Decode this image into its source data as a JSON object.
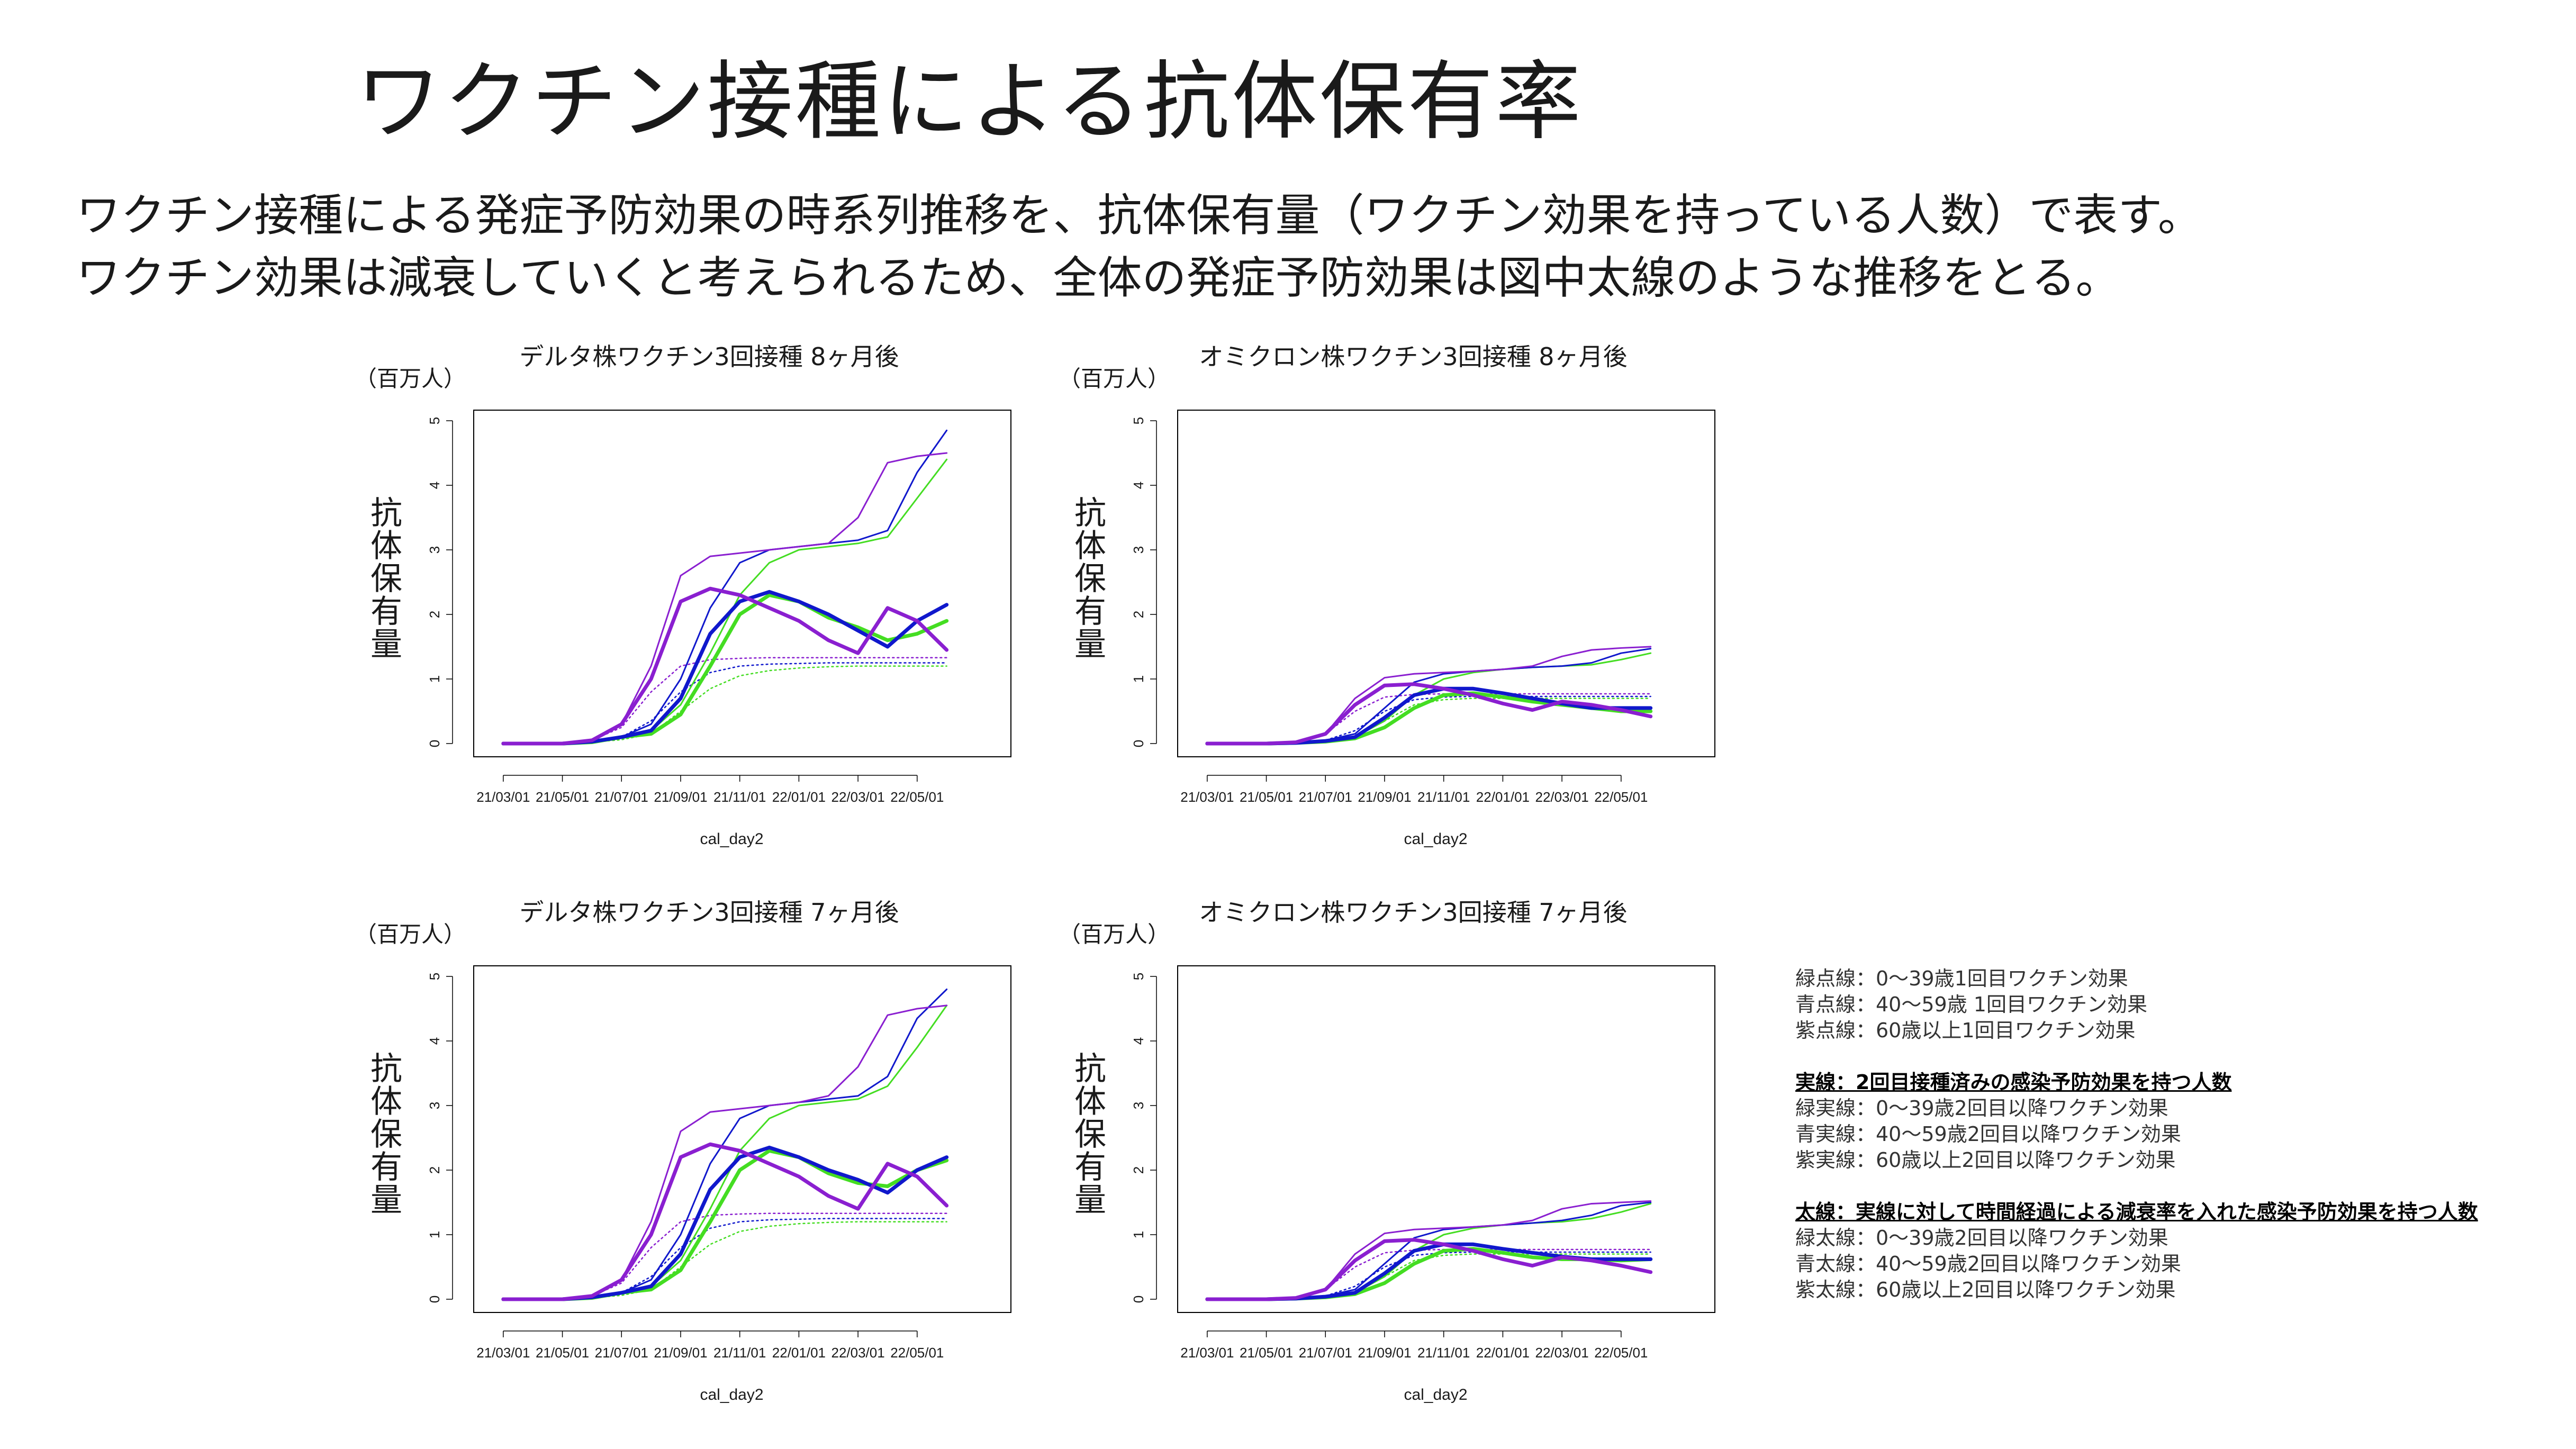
{
  "page": {
    "title": "ワクチン接種による抗体保有率",
    "subtitle_lines": [
      "ワクチン接種による発症予防効果の時系列推移を、抗体保有量（ワクチン効果を持っている人数）で表す。",
      "ワクチン効果は減衰していくと考えられるため、全体の発症予防効果は図中太線のような推移をとる。"
    ]
  },
  "colors": {
    "green": "#44dd22",
    "blue": "#1018cc",
    "purple": "#8a1fd0"
  },
  "legend": {
    "dotted_items": [
      "緑点線：0〜39歳1回目ワクチン効果",
      "青点線：40〜59歳 1回目ワクチン効果",
      "紫点線：60歳以上1回目ワクチン効果"
    ],
    "solid_header": "実線：2回目接種済みの感染予防効果を持つ人数",
    "solid_items": [
      "緑実線：0〜39歳2回目以降ワクチン効果",
      "青実線：40〜59歳2回目以降ワクチン効果",
      "紫実線：60歳以上2回目以降ワクチン効果"
    ],
    "thick_header": "太線：実線に対して時間経過による減衰率を入れた感染予防効果を持つ人数",
    "thick_items": [
      "緑太線：0〜39歳2回目以降ワクチン効果",
      "青太線：40〜59歳2回目以降ワクチン効果",
      "紫太線：60歳以上2回目以降ワクチン効果"
    ]
  },
  "chart_data": [
    {
      "type": "line",
      "title": "デルタ株ワクチン3回接種 8ヶ月後",
      "unit_label": "（百万人）",
      "ylabel": "抗体保有量",
      "xlabel": "cal_day2",
      "x_ticks": [
        "21/03/01",
        "21/05/01",
        "21/07/01",
        "21/09/01",
        "21/11/01",
        "22/01/01",
        "22/03/01",
        "22/05/01"
      ],
      "ylim": [
        0,
        5
      ],
      "y_ticks": [
        0,
        1,
        2,
        3,
        4,
        5
      ],
      "x_points": [
        0,
        1,
        2,
        3,
        4,
        5,
        6,
        7,
        8,
        9,
        10,
        11,
        12,
        13,
        14,
        15
      ],
      "series": [
        {
          "color": "green",
          "style": "dotted",
          "values": [
            0,
            0,
            0,
            0.02,
            0.06,
            0.15,
            0.5,
            0.85,
            1.05,
            1.13,
            1.17,
            1.19,
            1.2,
            1.2,
            1.2,
            1.2
          ]
        },
        {
          "color": "blue",
          "style": "dotted",
          "values": [
            0,
            0,
            0,
            0.03,
            0.1,
            0.35,
            0.8,
            1.1,
            1.2,
            1.23,
            1.24,
            1.25,
            1.25,
            1.25,
            1.25,
            1.25
          ]
        },
        {
          "color": "purple",
          "style": "dotted",
          "values": [
            0,
            0,
            0,
            0.05,
            0.25,
            0.8,
            1.2,
            1.3,
            1.32,
            1.33,
            1.33,
            1.33,
            1.33,
            1.33,
            1.33,
            1.33
          ]
        },
        {
          "color": "green",
          "style": "thin",
          "values": [
            0,
            0,
            0,
            0.02,
            0.1,
            0.2,
            0.6,
            1.4,
            2.3,
            2.8,
            3.0,
            3.05,
            3.1,
            3.2,
            3.8,
            4.4
          ]
        },
        {
          "color": "blue",
          "style": "thin",
          "values": [
            0,
            0,
            0,
            0.03,
            0.1,
            0.3,
            1.0,
            2.1,
            2.8,
            3.0,
            3.05,
            3.1,
            3.15,
            3.3,
            4.2,
            4.85
          ]
        },
        {
          "color": "purple",
          "style": "thin",
          "values": [
            0,
            0,
            0,
            0.05,
            0.3,
            1.2,
            2.6,
            2.9,
            2.95,
            3.0,
            3.05,
            3.1,
            3.5,
            4.35,
            4.45,
            4.5
          ]
        },
        {
          "color": "green",
          "style": "thick",
          "values": [
            0,
            0,
            0,
            0.02,
            0.1,
            0.15,
            0.45,
            1.2,
            2.0,
            2.3,
            2.2,
            1.95,
            1.8,
            1.6,
            1.7,
            1.9
          ]
        },
        {
          "color": "blue",
          "style": "thick",
          "values": [
            0,
            0,
            0,
            0.03,
            0.1,
            0.2,
            0.7,
            1.7,
            2.2,
            2.35,
            2.2,
            2.0,
            1.75,
            1.5,
            1.9,
            2.15
          ]
        },
        {
          "color": "purple",
          "style": "thick",
          "values": [
            0,
            0,
            0,
            0.05,
            0.3,
            1.0,
            2.2,
            2.4,
            2.3,
            2.1,
            1.9,
            1.6,
            1.4,
            2.1,
            1.9,
            1.45
          ]
        }
      ]
    },
    {
      "type": "line",
      "title": "オミクロン株ワクチン3回接種 8ヶ月後",
      "unit_label": "（百万人）",
      "ylabel": "抗体保有量",
      "xlabel": "cal_day2",
      "x_ticks": [
        "21/03/01",
        "21/05/01",
        "21/07/01",
        "21/09/01",
        "21/11/01",
        "22/01/01",
        "22/03/01",
        "22/05/01"
      ],
      "ylim": [
        0,
        5
      ],
      "y_ticks": [
        0,
        1,
        2,
        3,
        4,
        5
      ],
      "x_points": [
        0,
        1,
        2,
        3,
        4,
        5,
        6,
        7,
        8,
        9,
        10,
        11,
        12,
        13,
        14,
        15
      ],
      "series": [
        {
          "color": "green",
          "style": "dotted",
          "values": [
            0,
            0,
            0,
            0.01,
            0.03,
            0.1,
            0.35,
            0.6,
            0.68,
            0.7,
            0.7,
            0.7,
            0.7,
            0.7,
            0.7,
            0.7
          ]
        },
        {
          "color": "blue",
          "style": "dotted",
          "values": [
            0,
            0,
            0,
            0.01,
            0.05,
            0.2,
            0.5,
            0.68,
            0.72,
            0.73,
            0.73,
            0.73,
            0.73,
            0.73,
            0.73,
            0.73
          ]
        },
        {
          "color": "purple",
          "style": "dotted",
          "values": [
            0,
            0,
            0,
            0.02,
            0.15,
            0.5,
            0.72,
            0.76,
            0.77,
            0.77,
            0.77,
            0.77,
            0.77,
            0.77,
            0.77,
            0.77
          ]
        },
        {
          "color": "green",
          "style": "thin",
          "values": [
            0,
            0,
            0,
            0.01,
            0.04,
            0.1,
            0.35,
            0.75,
            1.0,
            1.1,
            1.15,
            1.18,
            1.2,
            1.22,
            1.3,
            1.4
          ]
        },
        {
          "color": "blue",
          "style": "thin",
          "values": [
            0,
            0,
            0,
            0.01,
            0.05,
            0.15,
            0.55,
            0.95,
            1.08,
            1.12,
            1.15,
            1.18,
            1.2,
            1.25,
            1.4,
            1.47
          ]
        },
        {
          "color": "purple",
          "style": "thin",
          "values": [
            0,
            0,
            0,
            0.02,
            0.15,
            0.7,
            1.02,
            1.08,
            1.1,
            1.12,
            1.15,
            1.2,
            1.35,
            1.45,
            1.48,
            1.5
          ]
        },
        {
          "color": "green",
          "style": "thick",
          "values": [
            0,
            0,
            0,
            0.01,
            0.03,
            0.08,
            0.25,
            0.55,
            0.75,
            0.78,
            0.72,
            0.65,
            0.6,
            0.55,
            0.5,
            0.5
          ]
        },
        {
          "color": "blue",
          "style": "thick",
          "values": [
            0,
            0,
            0,
            0.01,
            0.04,
            0.1,
            0.4,
            0.75,
            0.85,
            0.85,
            0.78,
            0.7,
            0.62,
            0.55,
            0.55,
            0.55
          ]
        },
        {
          "color": "purple",
          "style": "thick",
          "values": [
            0,
            0,
            0,
            0.02,
            0.15,
            0.6,
            0.9,
            0.92,
            0.85,
            0.75,
            0.62,
            0.52,
            0.65,
            0.6,
            0.52,
            0.42
          ]
        }
      ]
    },
    {
      "type": "line",
      "title": "デルタ株ワクチン3回接種 7ヶ月後",
      "unit_label": "（百万人）",
      "ylabel": "抗体保有量",
      "xlabel": "cal_day2",
      "x_ticks": [
        "21/03/01",
        "21/05/01",
        "21/07/01",
        "21/09/01",
        "21/11/01",
        "22/01/01",
        "22/03/01",
        "22/05/01"
      ],
      "ylim": [
        0,
        5
      ],
      "y_ticks": [
        0,
        1,
        2,
        3,
        4,
        5
      ],
      "x_points": [
        0,
        1,
        2,
        3,
        4,
        5,
        6,
        7,
        8,
        9,
        10,
        11,
        12,
        13,
        14,
        15
      ],
      "series": [
        {
          "color": "green",
          "style": "dotted",
          "values": [
            0,
            0,
            0,
            0.02,
            0.06,
            0.15,
            0.5,
            0.85,
            1.05,
            1.13,
            1.17,
            1.19,
            1.2,
            1.2,
            1.2,
            1.2
          ]
        },
        {
          "color": "blue",
          "style": "dotted",
          "values": [
            0,
            0,
            0,
            0.03,
            0.1,
            0.35,
            0.8,
            1.1,
            1.2,
            1.23,
            1.24,
            1.25,
            1.25,
            1.25,
            1.25,
            1.25
          ]
        },
        {
          "color": "purple",
          "style": "dotted",
          "values": [
            0,
            0,
            0,
            0.05,
            0.25,
            0.8,
            1.2,
            1.3,
            1.32,
            1.33,
            1.33,
            1.33,
            1.33,
            1.33,
            1.33,
            1.33
          ]
        },
        {
          "color": "green",
          "style": "thin",
          "values": [
            0,
            0,
            0,
            0.02,
            0.1,
            0.2,
            0.6,
            1.4,
            2.3,
            2.8,
            3.0,
            3.05,
            3.1,
            3.3,
            3.9,
            4.55
          ]
        },
        {
          "color": "blue",
          "style": "thin",
          "values": [
            0,
            0,
            0,
            0.03,
            0.1,
            0.3,
            1.0,
            2.1,
            2.8,
            3.0,
            3.05,
            3.1,
            3.15,
            3.45,
            4.35,
            4.8
          ]
        },
        {
          "color": "purple",
          "style": "thin",
          "values": [
            0,
            0,
            0,
            0.05,
            0.3,
            1.2,
            2.6,
            2.9,
            2.95,
            3.0,
            3.05,
            3.15,
            3.6,
            4.4,
            4.5,
            4.55
          ]
        },
        {
          "color": "green",
          "style": "thick",
          "values": [
            0,
            0,
            0,
            0.02,
            0.1,
            0.15,
            0.45,
            1.2,
            2.0,
            2.3,
            2.2,
            1.95,
            1.8,
            1.75,
            2.0,
            2.15
          ]
        },
        {
          "color": "blue",
          "style": "thick",
          "values": [
            0,
            0,
            0,
            0.03,
            0.1,
            0.2,
            0.7,
            1.7,
            2.2,
            2.35,
            2.2,
            2.0,
            1.85,
            1.65,
            2.0,
            2.2
          ]
        },
        {
          "color": "purple",
          "style": "thick",
          "values": [
            0,
            0,
            0,
            0.05,
            0.3,
            1.0,
            2.2,
            2.4,
            2.3,
            2.1,
            1.9,
            1.6,
            1.4,
            2.1,
            1.9,
            1.45
          ]
        }
      ]
    },
    {
      "type": "line",
      "title": "オミクロン株ワクチン3回接種 7ヶ月後",
      "unit_label": "（百万人）",
      "ylabel": "抗体保有量",
      "xlabel": "cal_day2",
      "x_ticks": [
        "21/03/01",
        "21/05/01",
        "21/07/01",
        "21/09/01",
        "21/11/01",
        "22/01/01",
        "22/03/01",
        "22/05/01"
      ],
      "ylim": [
        0,
        5
      ],
      "y_ticks": [
        0,
        1,
        2,
        3,
        4,
        5
      ],
      "x_points": [
        0,
        1,
        2,
        3,
        4,
        5,
        6,
        7,
        8,
        9,
        10,
        11,
        12,
        13,
        14,
        15
      ],
      "series": [
        {
          "color": "green",
          "style": "dotted",
          "values": [
            0,
            0,
            0,
            0.01,
            0.03,
            0.1,
            0.35,
            0.6,
            0.68,
            0.7,
            0.7,
            0.7,
            0.7,
            0.7,
            0.7,
            0.7
          ]
        },
        {
          "color": "blue",
          "style": "dotted",
          "values": [
            0,
            0,
            0,
            0.01,
            0.05,
            0.2,
            0.5,
            0.68,
            0.72,
            0.73,
            0.73,
            0.73,
            0.73,
            0.73,
            0.73,
            0.73
          ]
        },
        {
          "color": "purple",
          "style": "dotted",
          "values": [
            0,
            0,
            0,
            0.02,
            0.15,
            0.5,
            0.72,
            0.76,
            0.77,
            0.77,
            0.77,
            0.77,
            0.77,
            0.77,
            0.77,
            0.77
          ]
        },
        {
          "color": "green",
          "style": "thin",
          "values": [
            0,
            0,
            0,
            0.01,
            0.04,
            0.1,
            0.35,
            0.75,
            1.0,
            1.1,
            1.15,
            1.18,
            1.2,
            1.25,
            1.35,
            1.48
          ]
        },
        {
          "color": "blue",
          "style": "thin",
          "values": [
            0,
            0,
            0,
            0.01,
            0.05,
            0.15,
            0.55,
            0.95,
            1.08,
            1.12,
            1.15,
            1.18,
            1.22,
            1.3,
            1.45,
            1.5
          ]
        },
        {
          "color": "purple",
          "style": "thin",
          "values": [
            0,
            0,
            0,
            0.02,
            0.15,
            0.7,
            1.02,
            1.08,
            1.1,
            1.12,
            1.15,
            1.22,
            1.4,
            1.48,
            1.5,
            1.52
          ]
        },
        {
          "color": "green",
          "style": "thick",
          "values": [
            0,
            0,
            0,
            0.01,
            0.03,
            0.08,
            0.25,
            0.55,
            0.75,
            0.78,
            0.72,
            0.65,
            0.62,
            0.62,
            0.6,
            0.62
          ]
        },
        {
          "color": "blue",
          "style": "thick",
          "values": [
            0,
            0,
            0,
            0.01,
            0.04,
            0.1,
            0.4,
            0.75,
            0.85,
            0.85,
            0.78,
            0.72,
            0.66,
            0.62,
            0.62,
            0.62
          ]
        },
        {
          "color": "purple",
          "style": "thick",
          "values": [
            0,
            0,
            0,
            0.02,
            0.15,
            0.6,
            0.9,
            0.92,
            0.85,
            0.75,
            0.62,
            0.52,
            0.65,
            0.6,
            0.52,
            0.42
          ]
        }
      ]
    }
  ]
}
